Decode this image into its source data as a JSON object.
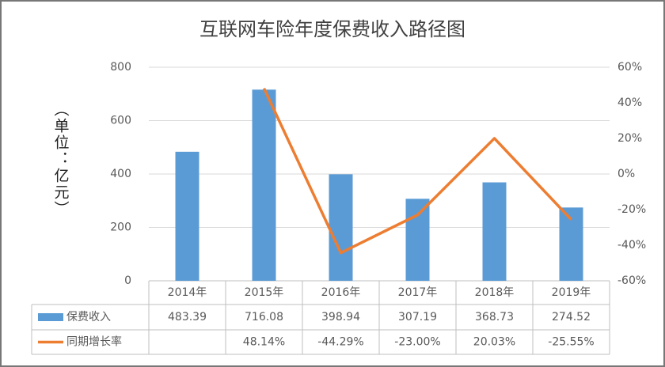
{
  "chart_data": {
    "type": "bar",
    "title": "互联网车险年度保费收入路径图",
    "y_label": "（单位：亿元）",
    "categories": [
      "2014年",
      "2015年",
      "2016年",
      "2017年",
      "2018年",
      "2019年"
    ],
    "series": [
      {
        "name": "保费收入",
        "type": "bar",
        "color": "#5b9bd5",
        "values": [
          483.39,
          716.08,
          398.94,
          307.19,
          368.73,
          274.52
        ]
      },
      {
        "name": "同期增长率",
        "type": "line",
        "axis": "y2",
        "color": "#ed7d31",
        "values": [
          null,
          48.14,
          -44.29,
          -23.0,
          20.03,
          -25.55
        ],
        "value_labels": [
          null,
          "48.14%",
          "-44.29%",
          "-23.00%",
          "20.03%",
          "-25.55%"
        ]
      }
    ],
    "ylim": [
      0,
      800
    ],
    "yticks": [
      0,
      200,
      400,
      600,
      800
    ],
    "y2lim": [
      -60,
      60
    ],
    "y2ticks": [
      {
        "value": -60,
        "label": "-60%"
      },
      {
        "value": -40,
        "label": "-40%"
      },
      {
        "value": -20,
        "label": "-20%"
      },
      {
        "value": 0,
        "label": "0%"
      },
      {
        "value": 20,
        "label": "20%"
      },
      {
        "value": 40,
        "label": "40%"
      },
      {
        "value": 60,
        "label": "60%"
      }
    ],
    "grid": true
  }
}
